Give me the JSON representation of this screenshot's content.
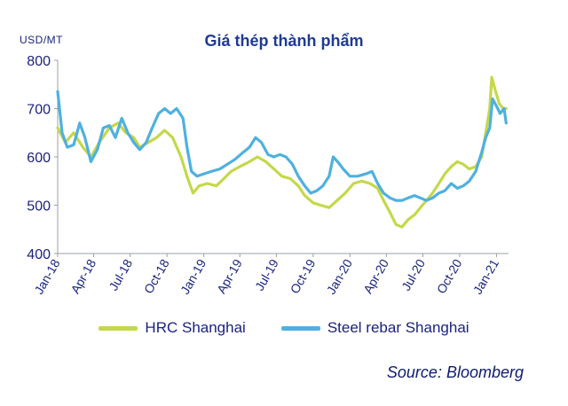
{
  "chart_data": {
    "type": "line",
    "title": "Giá thép thành phẩm",
    "unit_label": "USD/MT",
    "ylim": [
      400,
      800
    ],
    "yticks": [
      400,
      500,
      600,
      700,
      800
    ],
    "xlim": [
      "2018-01-01",
      "2021-01-31"
    ],
    "xticks": [
      {
        "date": "2018-01-01",
        "label": "Jan-18"
      },
      {
        "date": "2018-04-01",
        "label": "Apr-18"
      },
      {
        "date": "2018-07-01",
        "label": "Jul-18"
      },
      {
        "date": "2018-10-01",
        "label": "Oct-18"
      },
      {
        "date": "2019-01-01",
        "label": "Jan-19"
      },
      {
        "date": "2019-04-01",
        "label": "Apr-19"
      },
      {
        "date": "2019-07-01",
        "label": "Jul-19"
      },
      {
        "date": "2019-10-01",
        "label": "Oct-19"
      },
      {
        "date": "2020-01-01",
        "label": "Jan-20"
      },
      {
        "date": "2020-04-01",
        "label": "Apr-20"
      },
      {
        "date": "2020-07-01",
        "label": "Jul-20"
      },
      {
        "date": "2020-10-01",
        "label": "Oct-20"
      },
      {
        "date": "2021-01-01",
        "label": "Jan-21"
      }
    ],
    "grid": false,
    "legend_position": "bottom",
    "series": [
      {
        "name": "HRC Shanghai",
        "color": "#c5d84a",
        "points": [
          [
            "2018-01-01",
            660
          ],
          [
            "2018-01-20",
            630
          ],
          [
            "2018-02-10",
            650
          ],
          [
            "2018-03-05",
            620
          ],
          [
            "2018-03-25",
            600
          ],
          [
            "2018-04-15",
            630
          ],
          [
            "2018-05-10",
            660
          ],
          [
            "2018-06-01",
            670
          ],
          [
            "2018-06-20",
            650
          ],
          [
            "2018-07-10",
            640
          ],
          [
            "2018-07-25",
            620
          ],
          [
            "2018-08-15",
            630
          ],
          [
            "2018-09-05",
            640
          ],
          [
            "2018-09-25",
            655
          ],
          [
            "2018-10-15",
            640
          ],
          [
            "2018-11-05",
            600
          ],
          [
            "2018-11-20",
            560
          ],
          [
            "2018-12-05",
            525
          ],
          [
            "2018-12-20",
            540
          ],
          [
            "2019-01-10",
            545
          ],
          [
            "2019-02-01",
            540
          ],
          [
            "2019-02-20",
            555
          ],
          [
            "2019-03-10",
            570
          ],
          [
            "2019-04-01",
            580
          ],
          [
            "2019-04-25",
            590
          ],
          [
            "2019-05-15",
            600
          ],
          [
            "2019-06-05",
            590
          ],
          [
            "2019-06-25",
            575
          ],
          [
            "2019-07-15",
            560
          ],
          [
            "2019-08-05",
            555
          ],
          [
            "2019-08-25",
            540
          ],
          [
            "2019-09-10",
            520
          ],
          [
            "2019-10-01",
            505
          ],
          [
            "2019-10-20",
            500
          ],
          [
            "2019-11-10",
            495
          ],
          [
            "2019-11-30",
            510
          ],
          [
            "2019-12-20",
            525
          ],
          [
            "2020-01-10",
            545
          ],
          [
            "2020-01-30",
            550
          ],
          [
            "2020-02-20",
            545
          ],
          [
            "2020-03-10",
            535
          ],
          [
            "2020-03-25",
            510
          ],
          [
            "2020-04-10",
            485
          ],
          [
            "2020-04-25",
            460
          ],
          [
            "2020-05-10",
            455
          ],
          [
            "2020-05-25",
            470
          ],
          [
            "2020-06-10",
            480
          ],
          [
            "2020-06-25",
            495
          ],
          [
            "2020-07-10",
            510
          ],
          [
            "2020-07-25",
            525
          ],
          [
            "2020-08-10",
            545
          ],
          [
            "2020-08-25",
            565
          ],
          [
            "2020-09-10",
            580
          ],
          [
            "2020-09-25",
            590
          ],
          [
            "2020-10-10",
            585
          ],
          [
            "2020-10-25",
            575
          ],
          [
            "2020-11-10",
            580
          ],
          [
            "2020-11-25",
            600
          ],
          [
            "2020-12-05",
            650
          ],
          [
            "2020-12-15",
            700
          ],
          [
            "2020-12-20",
            765
          ],
          [
            "2020-12-28",
            740
          ],
          [
            "2021-01-08",
            710
          ],
          [
            "2021-01-18",
            700
          ],
          [
            "2021-01-25",
            700
          ]
        ]
      },
      {
        "name": "Steel rebar Shanghai",
        "color": "#4fb0e0",
        "points": [
          [
            "2018-01-01",
            735
          ],
          [
            "2018-01-12",
            650
          ],
          [
            "2018-01-25",
            620
          ],
          [
            "2018-02-10",
            625
          ],
          [
            "2018-02-25",
            670
          ],
          [
            "2018-03-10",
            640
          ],
          [
            "2018-03-25",
            590
          ],
          [
            "2018-04-10",
            615
          ],
          [
            "2018-04-25",
            660
          ],
          [
            "2018-05-10",
            665
          ],
          [
            "2018-05-25",
            640
          ],
          [
            "2018-06-10",
            680
          ],
          [
            "2018-06-25",
            650
          ],
          [
            "2018-07-10",
            630
          ],
          [
            "2018-07-25",
            615
          ],
          [
            "2018-08-10",
            630
          ],
          [
            "2018-08-25",
            660
          ],
          [
            "2018-09-10",
            690
          ],
          [
            "2018-09-25",
            700
          ],
          [
            "2018-10-10",
            690
          ],
          [
            "2018-10-25",
            700
          ],
          [
            "2018-11-10",
            680
          ],
          [
            "2018-11-20",
            620
          ],
          [
            "2018-12-01",
            570
          ],
          [
            "2018-12-15",
            560
          ],
          [
            "2019-01-01",
            565
          ],
          [
            "2019-01-20",
            570
          ],
          [
            "2019-02-10",
            575
          ],
          [
            "2019-03-01",
            585
          ],
          [
            "2019-03-20",
            595
          ],
          [
            "2019-04-10",
            610
          ],
          [
            "2019-04-25",
            620
          ],
          [
            "2019-05-10",
            640
          ],
          [
            "2019-05-25",
            630
          ],
          [
            "2019-06-10",
            605
          ],
          [
            "2019-06-25",
            600
          ],
          [
            "2019-07-10",
            605
          ],
          [
            "2019-07-25",
            600
          ],
          [
            "2019-08-10",
            585
          ],
          [
            "2019-08-25",
            560
          ],
          [
            "2019-09-10",
            540
          ],
          [
            "2019-09-25",
            525
          ],
          [
            "2019-10-10",
            530
          ],
          [
            "2019-10-25",
            540
          ],
          [
            "2019-11-10",
            560
          ],
          [
            "2019-11-20",
            600
          ],
          [
            "2019-12-01",
            590
          ],
          [
            "2019-12-15",
            575
          ],
          [
            "2020-01-01",
            560
          ],
          [
            "2020-01-20",
            560
          ],
          [
            "2020-02-10",
            565
          ],
          [
            "2020-02-25",
            570
          ],
          [
            "2020-03-10",
            545
          ],
          [
            "2020-03-25",
            525
          ],
          [
            "2020-04-10",
            515
          ],
          [
            "2020-04-25",
            510
          ],
          [
            "2020-05-10",
            510
          ],
          [
            "2020-05-25",
            515
          ],
          [
            "2020-06-10",
            520
          ],
          [
            "2020-06-25",
            515
          ],
          [
            "2020-07-10",
            510
          ],
          [
            "2020-07-25",
            515
          ],
          [
            "2020-08-10",
            525
          ],
          [
            "2020-08-25",
            530
          ],
          [
            "2020-09-10",
            545
          ],
          [
            "2020-09-25",
            535
          ],
          [
            "2020-10-10",
            540
          ],
          [
            "2020-10-25",
            550
          ],
          [
            "2020-11-10",
            570
          ],
          [
            "2020-11-25",
            610
          ],
          [
            "2020-12-05",
            640
          ],
          [
            "2020-12-15",
            660
          ],
          [
            "2020-12-22",
            720
          ],
          [
            "2021-01-01",
            705
          ],
          [
            "2021-01-10",
            690
          ],
          [
            "2021-01-20",
            700
          ],
          [
            "2021-01-25",
            670
          ]
        ]
      }
    ],
    "source": "Source: Bloomberg"
  }
}
